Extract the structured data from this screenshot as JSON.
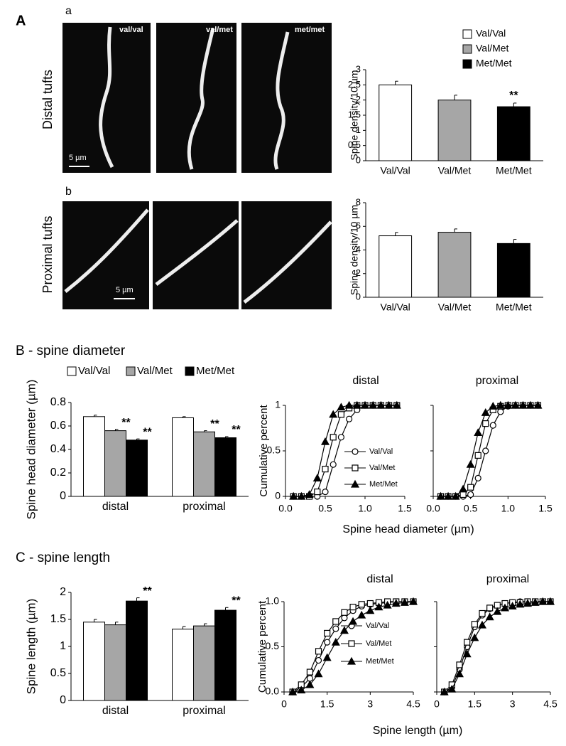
{
  "figure": {
    "panel_a": "A",
    "sub_a": "a",
    "sub_b": "b",
    "row_a": "Distal tufts",
    "row_b": "Proximal tufts",
    "panel_b": "B - spine diameter",
    "panel_c": "C - spine length",
    "micrographs": [
      "val/val",
      "val/met",
      "met/met"
    ],
    "scale_bar": "5 µm"
  },
  "chart_data": [
    {
      "type": "bar",
      "ylabel": "Spine density/10 µm",
      "categories": [
        "Val/Val",
        "Val/Met",
        "Met/Met"
      ],
      "values": [
        2.5,
        2.0,
        1.78
      ],
      "errors": [
        0.12,
        0.16,
        0.12
      ],
      "colors": [
        "#ffffff",
        "#a6a6a6",
        "#000000"
      ],
      "annotations": [
        null,
        null,
        "**"
      ],
      "legend": [
        "Val/Val",
        "Val/Met",
        "Met/Met"
      ],
      "ylim": [
        0,
        3
      ],
      "yticks": [
        0,
        0.5,
        1,
        1.5,
        2,
        2.5,
        3
      ]
    },
    {
      "type": "bar",
      "ylabel": "Spine density/10 µm",
      "categories": [
        "Val/Val",
        "Val/Met",
        "Met/Met"
      ],
      "values": [
        5.2,
        5.5,
        4.55
      ],
      "errors": [
        0.28,
        0.28,
        0.35
      ],
      "colors": [
        "#ffffff",
        "#a6a6a6",
        "#000000"
      ],
      "ylim": [
        0,
        8
      ],
      "yticks": [
        0,
        2,
        4,
        6,
        8
      ]
    },
    {
      "type": "grouped_bar",
      "ylabel": "Spine head diameter (µm)",
      "categories": [
        "distal",
        "proximal"
      ],
      "series": [
        {
          "name": "Val/Val",
          "color": "#ffffff",
          "values": [
            0.68,
            0.67
          ],
          "errors": [
            0.012,
            0.01
          ]
        },
        {
          "name": "Val/Met",
          "color": "#a6a6a6",
          "values": [
            0.56,
            0.55
          ],
          "errors": [
            0.012,
            0.01
          ],
          "annotations": [
            "**",
            "**"
          ]
        },
        {
          "name": "Met/Met",
          "color": "#000000",
          "values": [
            0.48,
            0.5
          ],
          "errors": [
            0.01,
            0.01
          ],
          "annotations": [
            "**",
            "**"
          ]
        }
      ],
      "ylim": [
        0,
        0.8
      ],
      "yticks": [
        0,
        0.2,
        0.4,
        0.6,
        0.8
      ]
    },
    {
      "type": "line",
      "title": "distal",
      "ylabel": "Cumulative percent",
      "xlabel": "Spine head diameter (µm)",
      "x": [
        0.1,
        0.2,
        0.3,
        0.4,
        0.5,
        0.6,
        0.7,
        0.8,
        0.9,
        1.0,
        1.1,
        1.2,
        1.3,
        1.4
      ],
      "series": [
        {
          "name": "Val/Val",
          "marker": "circle",
          "values": [
            0,
            0,
            0,
            0,
            0.05,
            0.35,
            0.65,
            0.85,
            0.95,
            1,
            1,
            1,
            1,
            1
          ]
        },
        {
          "name": "Val/Met",
          "marker": "square",
          "values": [
            0,
            0,
            0,
            0.05,
            0.3,
            0.65,
            0.9,
            0.97,
            1,
            1,
            1,
            1,
            1,
            1
          ]
        },
        {
          "name": "Met/Met",
          "marker": "triangle",
          "values": [
            0,
            0,
            0.02,
            0.2,
            0.6,
            0.9,
            0.98,
            1,
            1,
            1,
            1,
            1,
            1,
            1
          ]
        }
      ],
      "xlim": [
        0,
        1.5
      ],
      "xticks": [
        {
          "value": 0,
          "label": "0.0"
        },
        0.5,
        {
          "value": 1,
          "label": "1.0"
        },
        1.5
      ],
      "ylim": [
        0,
        1
      ],
      "yticks": [
        0,
        0.5,
        1
      ]
    },
    {
      "type": "line",
      "title": "proximal",
      "x": [
        0.1,
        0.2,
        0.3,
        0.4,
        0.5,
        0.6,
        0.7,
        0.8,
        0.9,
        1.0,
        1.1,
        1.2,
        1.3,
        1.4
      ],
      "series": [
        {
          "marker": "circle",
          "values": [
            0,
            0,
            0,
            0,
            0.02,
            0.2,
            0.5,
            0.78,
            0.93,
            0.99,
            1,
            1,
            1,
            1
          ]
        },
        {
          "marker": "square",
          "values": [
            0,
            0,
            0,
            0.02,
            0.1,
            0.45,
            0.8,
            0.95,
            0.99,
            1,
            1,
            1,
            1,
            1
          ]
        },
        {
          "marker": "triangle",
          "values": [
            0,
            0,
            0,
            0.08,
            0.35,
            0.7,
            0.92,
            0.99,
            1,
            1,
            1,
            1,
            1,
            1
          ]
        }
      ],
      "xlim": [
        0,
        1.5
      ],
      "xticks": [
        {
          "value": 0,
          "label": "0.0"
        },
        0.5,
        {
          "value": 1,
          "label": "1.0"
        },
        1.5
      ],
      "ylim": [
        0,
        1
      ]
    },
    {
      "type": "grouped_bar",
      "ylabel": "Spine length (µm)",
      "categories": [
        "distal",
        "proximal"
      ],
      "series": [
        {
          "name": "Val/Val",
          "color": "#ffffff",
          "values": [
            1.45,
            1.32
          ],
          "errors": [
            0.05,
            0.05
          ]
        },
        {
          "name": "Val/Met",
          "color": "#a6a6a6",
          "values": [
            1.4,
            1.38
          ],
          "errors": [
            0.05,
            0.04
          ]
        },
        {
          "name": "Met/Met",
          "color": "#000000",
          "values": [
            1.84,
            1.67
          ],
          "errors": [
            0.06,
            0.05
          ],
          "annotations": [
            "**",
            "**"
          ]
        }
      ],
      "ylim": [
        0,
        2
      ],
      "yticks": [
        0,
        0.5,
        1,
        1.5,
        2
      ]
    },
    {
      "type": "line",
      "title": "distal",
      "ylabel": "Cumulative percent",
      "xlabel": "Spine length (µm)",
      "x": [
        0.3,
        0.6,
        0.9,
        1.2,
        1.5,
        1.8,
        2.1,
        2.4,
        2.7,
        3.0,
        3.3,
        3.6,
        3.9,
        4.2,
        4.5
      ],
      "series": [
        {
          "name": "Val/Val",
          "marker": "circle",
          "values": [
            0,
            0.05,
            0.15,
            0.35,
            0.55,
            0.7,
            0.82,
            0.9,
            0.95,
            0.97,
            0.98,
            0.99,
            1,
            1,
            1
          ]
        },
        {
          "name": "Val/Met",
          "marker": "square",
          "values": [
            0,
            0.08,
            0.22,
            0.45,
            0.65,
            0.78,
            0.88,
            0.94,
            0.97,
            0.98,
            0.99,
            1,
            1,
            1,
            1
          ]
        },
        {
          "name": "Met/Met",
          "marker": "triangle",
          "values": [
            0,
            0.02,
            0.08,
            0.2,
            0.38,
            0.55,
            0.68,
            0.78,
            0.85,
            0.9,
            0.94,
            0.96,
            0.98,
            0.99,
            1
          ]
        }
      ],
      "xlim": [
        0,
        4.5
      ],
      "xticks": [
        0,
        1.5,
        3,
        4.5
      ],
      "ylim": [
        0,
        1
      ],
      "yticks": [
        {
          "value": 0,
          "label": "0.0"
        },
        0.5,
        {
          "value": 1,
          "label": "1.0"
        }
      ]
    },
    {
      "type": "line",
      "title": "proximal",
      "x": [
        0.3,
        0.6,
        0.9,
        1.2,
        1.5,
        1.8,
        2.1,
        2.4,
        2.7,
        3.0,
        3.3,
        3.6,
        3.9,
        4.2,
        4.5
      ],
      "series": [
        {
          "marker": "circle",
          "values": [
            0,
            0.05,
            0.25,
            0.5,
            0.72,
            0.85,
            0.92,
            0.96,
            0.98,
            0.99,
            1,
            1,
            1,
            1,
            1
          ]
        },
        {
          "marker": "square",
          "values": [
            0,
            0.08,
            0.3,
            0.55,
            0.75,
            0.87,
            0.93,
            0.96,
            0.98,
            0.99,
            0.99,
            1,
            1,
            1,
            1
          ]
        },
        {
          "marker": "triangle",
          "values": [
            0,
            0.03,
            0.2,
            0.42,
            0.6,
            0.74,
            0.83,
            0.89,
            0.93,
            0.95,
            0.97,
            0.98,
            0.99,
            1,
            1
          ]
        }
      ],
      "xlim": [
        0,
        4.5
      ],
      "xticks": [
        0,
        1.5,
        3,
        4.5
      ],
      "ylim": [
        0,
        1
      ]
    }
  ]
}
